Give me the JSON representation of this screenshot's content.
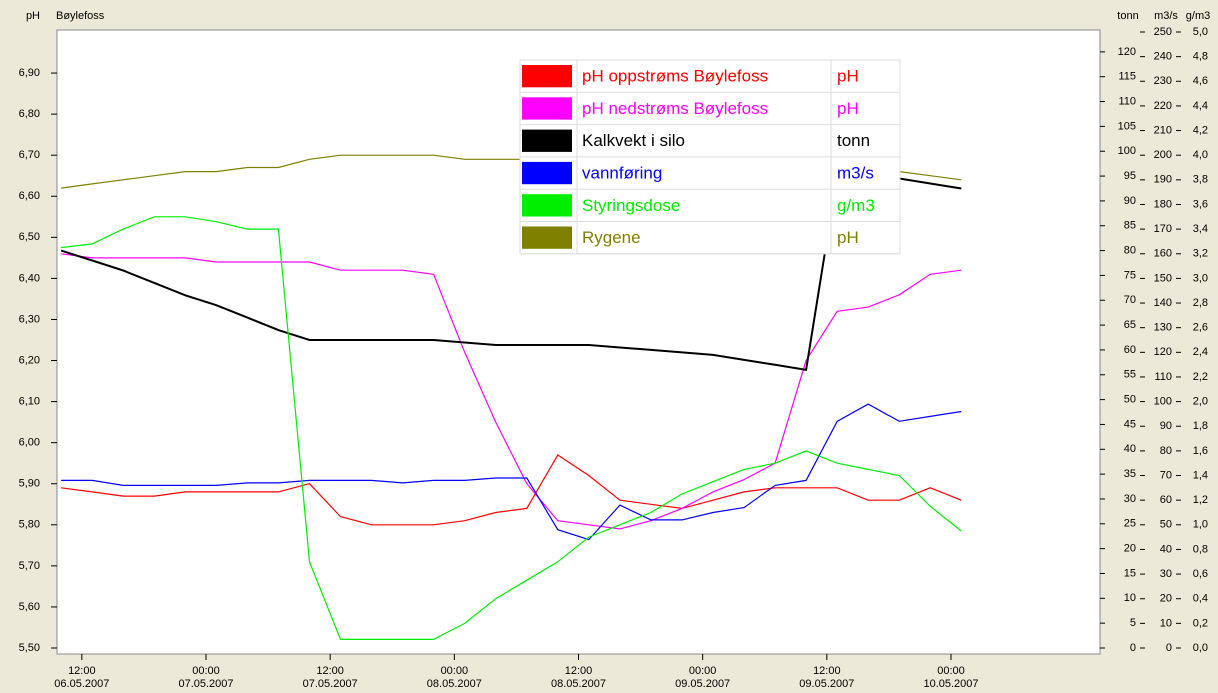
{
  "chart_data": {
    "type": "line",
    "ylabel": "pH",
    "title": "Bøylefoss",
    "y2label": "tonn",
    "y3label": "m3/s",
    "y4label": "g/m3",
    "x": [
      "06.05.2007 10:00",
      "06.05.2007 13:00",
      "06.05.2007 16:00",
      "06.05.2007 19:00",
      "06.05.2007 22:00",
      "07.05.2007 01:00",
      "07.05.2007 04:00",
      "07.05.2007 07:00",
      "07.05.2007 10:00",
      "07.05.2007 13:00",
      "07.05.2007 16:00",
      "07.05.2007 19:00",
      "07.05.2007 22:00",
      "08.05.2007 01:00",
      "08.05.2007 04:00",
      "08.05.2007 07:00",
      "08.05.2007 10:00",
      "08.05.2007 13:00",
      "08.05.2007 16:00",
      "08.05.2007 19:00",
      "08.05.2007 22:00",
      "09.05.2007 01:00",
      "09.05.2007 04:00",
      "09.05.2007 07:00",
      "09.05.2007 10:00",
      "09.05.2007 13:00",
      "09.05.2007 16:00",
      "09.05.2007 19:00",
      "09.05.2007 22:00",
      "10.05.2007 01:00"
    ],
    "xlim": [
      "06.05.2007 09:36",
      "10.05.2007 14:24"
    ],
    "xticks": [
      {
        "time": "12:00",
        "date": "06.05.2007"
      },
      {
        "time": "00:00",
        "date": "07.05.2007"
      },
      {
        "time": "12:00",
        "date": "07.05.2007"
      },
      {
        "time": "00:00",
        "date": "08.05.2007"
      },
      {
        "time": "12:00",
        "date": "08.05.2007"
      },
      {
        "time": "00:00",
        "date": "09.05.2007"
      },
      {
        "time": "12:00",
        "date": "09.05.2007"
      },
      {
        "time": "00:00",
        "date": "10.05.2007"
      }
    ],
    "ylim": [
      5.5,
      7.0
    ],
    "yticks": [
      {
        "value": 5.5,
        "label": "5,50"
      },
      {
        "value": 5.6,
        "label": "5,60"
      },
      {
        "value": 5.7,
        "label": "5,70"
      },
      {
        "value": 5.8,
        "label": "5,80"
      },
      {
        "value": 5.9,
        "label": "5,90"
      },
      {
        "value": 6.0,
        "label": "6,00"
      },
      {
        "value": 6.1,
        "label": "6,10"
      },
      {
        "value": 6.2,
        "label": "6,20"
      },
      {
        "value": 6.3,
        "label": "6,30"
      },
      {
        "value": 6.4,
        "label": "6,40"
      },
      {
        "value": 6.5,
        "label": "6,50"
      },
      {
        "value": 6.6,
        "label": "6,60"
      },
      {
        "value": 6.7,
        "label": "6,70"
      },
      {
        "value": 6.8,
        "label": "6,80"
      },
      {
        "value": 6.9,
        "label": "6,90"
      }
    ],
    "y2lim": [
      0,
      124
    ],
    "y2ticks": [
      0,
      5,
      10,
      15,
      20,
      25,
      30,
      35,
      40,
      45,
      50,
      55,
      60,
      65,
      70,
      75,
      80,
      85,
      90,
      95,
      100,
      105,
      110,
      115,
      120
    ],
    "y3lim": [
      0,
      250
    ],
    "y3ticks": [
      0,
      10,
      20,
      30,
      40,
      50,
      60,
      70,
      80,
      90,
      100,
      110,
      120,
      130,
      140,
      150,
      160,
      170,
      180,
      190,
      200,
      210,
      220,
      230,
      240,
      250
    ],
    "y4lim": [
      0,
      5
    ],
    "y4ticks": [
      {
        "value": 0,
        "label": "0,0"
      },
      {
        "value": 0.2,
        "label": "0,2"
      },
      {
        "value": 0.4,
        "label": "0,4"
      },
      {
        "value": 0.6,
        "label": "0,6"
      },
      {
        "value": 0.8,
        "label": "0,8"
      },
      {
        "value": 1.0,
        "label": "1,0"
      },
      {
        "value": 1.2,
        "label": "1,2"
      },
      {
        "value": 1.4,
        "label": "1,4"
      },
      {
        "value": 1.6,
        "label": "1,6"
      },
      {
        "value": 1.8,
        "label": "1,8"
      },
      {
        "value": 2.0,
        "label": "2,0"
      },
      {
        "value": 2.2,
        "label": "2,2"
      },
      {
        "value": 2.4,
        "label": "2,4"
      },
      {
        "value": 2.6,
        "label": "2,6"
      },
      {
        "value": 2.8,
        "label": "2,8"
      },
      {
        "value": 3.0,
        "label": "3,0"
      },
      {
        "value": 3.2,
        "label": "3,2"
      },
      {
        "value": 3.4,
        "label": "3,4"
      },
      {
        "value": 3.6,
        "label": "3,6"
      },
      {
        "value": 3.8,
        "label": "3,8"
      },
      {
        "value": 4.0,
        "label": "4,0"
      },
      {
        "value": 4.2,
        "label": "4,2"
      },
      {
        "value": 4.4,
        "label": "4,4"
      },
      {
        "value": 4.6,
        "label": "4,6"
      },
      {
        "value": 4.8,
        "label": "4,8"
      },
      {
        "value": 5.0,
        "label": "5,0"
      }
    ],
    "series": [
      {
        "name": "pH oppstrøms Bøylefoss",
        "unit": "pH",
        "color": "#ff0000",
        "axis": "y",
        "values": [
          5.89,
          5.88,
          5.87,
          5.87,
          5.88,
          5.88,
          5.88,
          5.88,
          5.9,
          5.82,
          5.8,
          5.8,
          5.8,
          5.81,
          5.83,
          5.84,
          5.97,
          5.92,
          5.86,
          5.85,
          5.84,
          5.86,
          5.88,
          5.89,
          5.89,
          5.89,
          5.86,
          5.86,
          5.89,
          5.86
        ]
      },
      {
        "name": "pH nedstrøms Bøylefoss",
        "unit": "pH",
        "color": "#ff00ff",
        "axis": "y",
        "values": [
          6.46,
          6.45,
          6.45,
          6.45,
          6.45,
          6.44,
          6.44,
          6.44,
          6.44,
          6.42,
          6.42,
          6.42,
          6.41,
          6.22,
          6.05,
          5.9,
          5.81,
          5.8,
          5.79,
          5.81,
          5.84,
          5.88,
          5.91,
          5.95,
          6.2,
          6.32,
          6.33,
          6.36,
          6.41,
          6.42
        ]
      },
      {
        "name": "Kalkvekt i silo",
        "unit": "tonn",
        "color": "#000000",
        "axis": "y2",
        "values": [
          80,
          78,
          76,
          73.5,
          71,
          69,
          66.5,
          64,
          62,
          62,
          62,
          62,
          62,
          61.5,
          61,
          61,
          61,
          61,
          60.5,
          60,
          59.5,
          59,
          58,
          57,
          56,
          95,
          95,
          94.5,
          93.5,
          92.5
        ]
      },
      {
        "name": "vannføring",
        "unit": "m3/s",
        "color": "#0000ff",
        "axis": "y3",
        "values": [
          68,
          68,
          66,
          66,
          66,
          66,
          67,
          67,
          68,
          68,
          68,
          67,
          68,
          68,
          69,
          69,
          48,
          44,
          58,
          52,
          52,
          55,
          57,
          66,
          68,
          92,
          99,
          92,
          94,
          96
        ]
      },
      {
        "name": "Styringsdose",
        "unit": "g/m3",
        "color": "#00ee00",
        "axis": "y4",
        "values": [
          3.25,
          3.28,
          3.4,
          3.5,
          3.5,
          3.46,
          3.4,
          3.4,
          0.7,
          0.07,
          0.07,
          0.07,
          0.07,
          0.2,
          0.4,
          0.55,
          0.7,
          0.9,
          1.0,
          1.1,
          1.25,
          1.35,
          1.45,
          1.5,
          1.6,
          1.5,
          1.45,
          1.4,
          1.15,
          0.95
        ]
      },
      {
        "name": "Rygene",
        "unit": "pH",
        "color": "#808000",
        "axis": "y",
        "values": [
          6.62,
          6.63,
          6.64,
          6.65,
          6.66,
          6.66,
          6.67,
          6.67,
          6.69,
          6.7,
          6.7,
          6.7,
          6.7,
          6.69,
          6.69,
          6.69,
          6.69,
          6.69,
          6.69,
          6.69,
          6.69,
          6.69,
          6.69,
          6.69,
          6.69,
          6.67,
          6.67,
          6.66,
          6.65,
          6.64
        ]
      }
    ]
  }
}
